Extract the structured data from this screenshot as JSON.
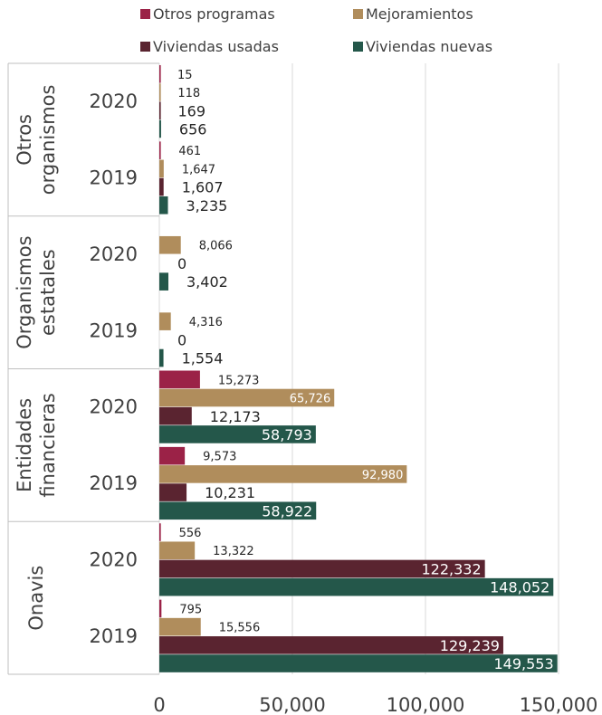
{
  "chart_data": {
    "type": "bar",
    "orientation": "horizontal",
    "legend": [
      {
        "name": "Otros programas",
        "color": "#9b2247"
      },
      {
        "name": "Mejoramientos",
        "color": "#b08d5c"
      },
      {
        "name": "Viviendas usadas",
        "color": "#5a2430"
      },
      {
        "name": "Viviendas nuevas",
        "color": "#24574a"
      }
    ],
    "legend_position": "top",
    "xlim": [
      0,
      150000
    ],
    "x_ticks": [
      "0",
      "50,000",
      "100,000",
      "150,000"
    ],
    "x_tick_values": [
      0,
      50000,
      100000,
      150000
    ],
    "grid": "vertical",
    "groups": [
      {
        "name": "Otros organismos",
        "name_lines": [
          "Otros",
          "organismos"
        ],
        "years": [
          {
            "year": "2020",
            "values": [
              15,
              118,
              169,
              656
            ],
            "labels": [
              "15",
              "118",
              "169",
              "656"
            ]
          },
          {
            "year": "2019",
            "values": [
              461,
              1647,
              1607,
              3235
            ],
            "labels": [
              "461",
              "1,647",
              "1,607",
              "3,235"
            ]
          }
        ]
      },
      {
        "name": "Organismos estatales",
        "name_lines": [
          "Organismos",
          "estatales"
        ],
        "years": [
          {
            "year": "2020",
            "values": [
              0,
              8066,
              0,
              3402
            ],
            "labels": [
              "",
              "8,066",
              "0",
              "3,402"
            ]
          },
          {
            "year": "2019",
            "values": [
              0,
              4316,
              0,
              1554
            ],
            "labels": [
              "",
              "4,316",
              "0",
              "1,554"
            ]
          }
        ]
      },
      {
        "name": "Entidades financieras",
        "name_lines": [
          "Entidades",
          "financieras"
        ],
        "years": [
          {
            "year": "2020",
            "values": [
              15273,
              65726,
              12173,
              58793
            ],
            "labels": [
              "15,273",
              "65,726",
              "12,173",
              "58,793"
            ]
          },
          {
            "year": "2019",
            "values": [
              9573,
              92980,
              10231,
              58922
            ],
            "labels": [
              "9,573",
              "92,980",
              "10,231",
              "58,922"
            ]
          }
        ]
      },
      {
        "name": "Onavis",
        "name_lines": [
          "Onavis"
        ],
        "years": [
          {
            "year": "2020",
            "values": [
              556,
              13322,
              122332,
              148052
            ],
            "labels": [
              "556",
              "13,322",
              "122,332",
              "148,052"
            ]
          },
          {
            "year": "2019",
            "values": [
              795,
              15556,
              129239,
              149553
            ],
            "labels": [
              "795",
              "15,556",
              "129,239",
              "149,553"
            ]
          }
        ]
      }
    ]
  }
}
